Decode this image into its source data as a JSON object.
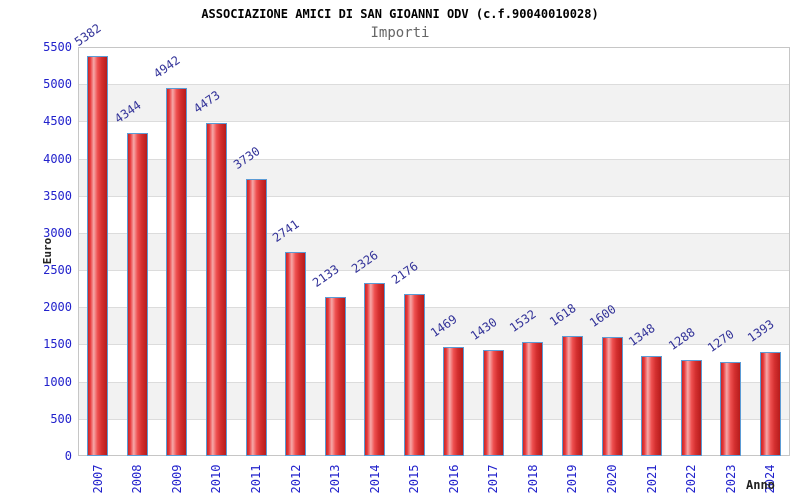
{
  "chart_data": {
    "type": "bar",
    "title": "ASSOCIAZIONE AMICI DI SAN GIOANNI ODV (c.f.90040010028)",
    "subtitle": "Importi",
    "xlabel": "Anno",
    "ylabel": "Euro",
    "categories": [
      "2007",
      "2008",
      "2009",
      "2010",
      "2011",
      "2012",
      "2013",
      "2014",
      "2015",
      "2016",
      "2017",
      "2018",
      "2019",
      "2020",
      "2021",
      "2022",
      "2023",
      "2024"
    ],
    "values": [
      5382,
      4344,
      4942,
      4473,
      3730,
      2741,
      2133,
      2326,
      2176,
      1469,
      1430,
      1532,
      1618,
      1600,
      1348,
      1288,
      1270,
      1393
    ],
    "yticks": [
      0,
      500,
      1000,
      1500,
      2000,
      2500,
      3000,
      3500,
      4000,
      4500,
      5000,
      5500
    ],
    "ylim": [
      0,
      5500
    ],
    "grid": true,
    "legend": "none",
    "colors": {
      "bar_border": "#5b9bd5",
      "bar_red_dark": "#b71c1c",
      "bar_red": "#e8393b",
      "bar_red_light": "#f6a8a8",
      "tick_label": "#2222cc",
      "value_label": "#333399",
      "band_gray": "#f2f2f2",
      "gridline": "#dcdcdc",
      "plot_border": "#c6c6c6",
      "title_color": "#000000",
      "subtitle_color": "#666666"
    }
  }
}
